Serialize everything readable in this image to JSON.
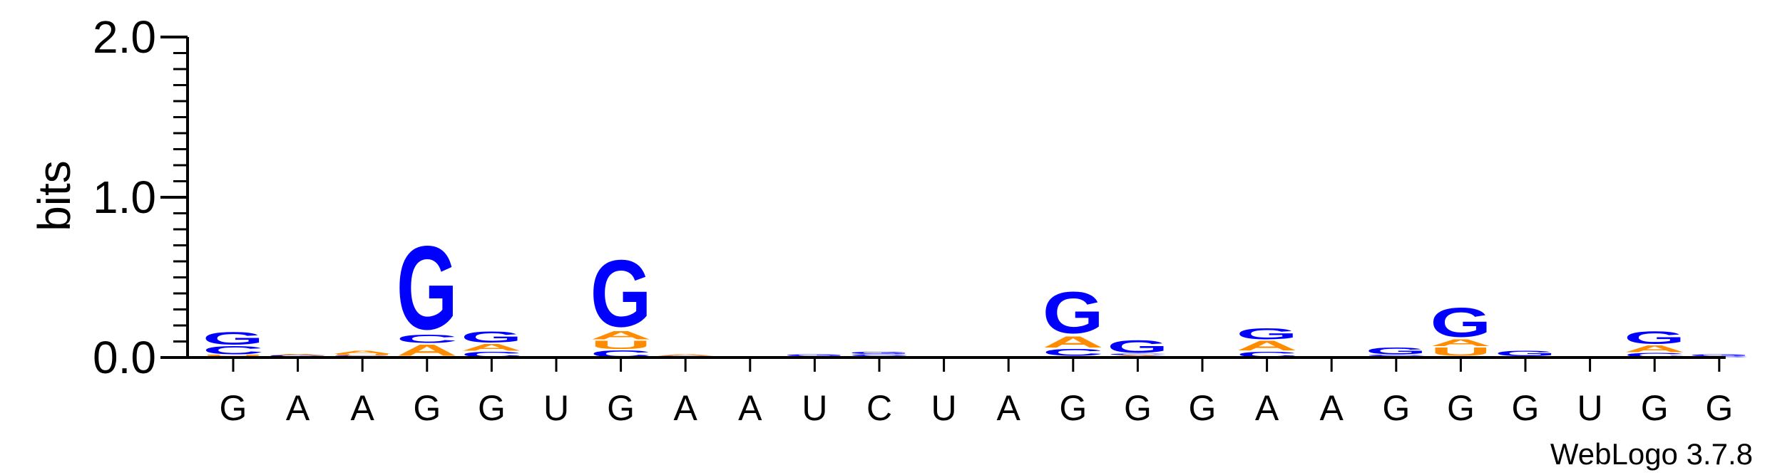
{
  "chart_data": {
    "type": "sequence-logo",
    "ylabel": "bits",
    "ylim": [
      0,
      2.0
    ],
    "yticks": [
      {
        "value": 0,
        "label": "0.0"
      },
      {
        "value": 1,
        "label": "1.0"
      },
      {
        "value": 2,
        "label": "2.0"
      }
    ],
    "y_minor_step": 0.1,
    "colors": {
      "G": "#0000ff",
      "C": "#0000ff",
      "A": "#ff8c00",
      "U": "#ff8c00"
    },
    "positions": [
      {
        "label": "G",
        "stack": [
          [
            "A",
            0.008
          ],
          [
            "U",
            0.008
          ],
          [
            "C",
            0.06
          ],
          [
            "G",
            0.09
          ]
        ]
      },
      {
        "label": "A",
        "stack": [
          [
            "U",
            0.006
          ],
          [
            "G",
            0.008
          ],
          [
            "A",
            0.008
          ]
        ]
      },
      {
        "label": "A",
        "stack": [
          [
            "G",
            0.006
          ],
          [
            "C",
            0.006
          ],
          [
            "U",
            0.008
          ],
          [
            "A",
            0.022
          ]
        ]
      },
      {
        "label": "G",
        "stack": [
          [
            "U",
            0.008
          ],
          [
            "A",
            0.08
          ],
          [
            "C",
            0.06
          ],
          [
            "G",
            0.6
          ]
        ]
      },
      {
        "label": "G",
        "stack": [
          [
            "C",
            0.04
          ],
          [
            "A",
            0.05
          ],
          [
            "G",
            0.08
          ]
        ]
      },
      {
        "label": "U",
        "stack": []
      },
      {
        "label": "G",
        "stack": [
          [
            "C",
            0.05
          ],
          [
            "U",
            0.06
          ],
          [
            "A",
            0.06
          ],
          [
            "G",
            0.48
          ]
        ]
      },
      {
        "label": "A",
        "stack": [
          [
            "U",
            0.005
          ],
          [
            "G",
            0.006
          ],
          [
            "A",
            0.008
          ]
        ]
      },
      {
        "label": "A",
        "stack": []
      },
      {
        "label": "U",
        "stack": [
          [
            "A",
            0.008
          ],
          [
            "G",
            0.014
          ]
        ]
      },
      {
        "label": "C",
        "stack": [
          [
            "A",
            0.008
          ],
          [
            "C",
            0.014
          ],
          [
            "G",
            0.016
          ]
        ]
      },
      {
        "label": "U",
        "stack": []
      },
      {
        "label": "A",
        "stack": []
      },
      {
        "label": "G",
        "stack": [
          [
            "U",
            0.008
          ],
          [
            "C",
            0.05
          ],
          [
            "A",
            0.08
          ],
          [
            "G",
            0.3
          ]
        ]
      },
      {
        "label": "G",
        "stack": [
          [
            "U",
            0.006
          ],
          [
            "A",
            0.008
          ],
          [
            "C",
            0.01
          ],
          [
            "G",
            0.09
          ]
        ]
      },
      {
        "label": "G",
        "stack": [
          [
            "G",
            0.01
          ]
        ]
      },
      {
        "label": "A",
        "stack": [
          [
            "C",
            0.04
          ],
          [
            "A",
            0.07
          ],
          [
            "G",
            0.08
          ]
        ]
      },
      {
        "label": "A",
        "stack": []
      },
      {
        "label": "G",
        "stack": [
          [
            "A",
            0.008
          ],
          [
            "C",
            0.01
          ],
          [
            "G",
            0.05
          ]
        ]
      },
      {
        "label": "G",
        "stack": [
          [
            "C",
            0.008
          ],
          [
            "U",
            0.06
          ],
          [
            "A",
            0.05
          ],
          [
            "G",
            0.21
          ]
        ]
      },
      {
        "label": "G",
        "stack": [
          [
            "C",
            0.006
          ],
          [
            "G",
            0.04
          ]
        ]
      },
      {
        "label": "U",
        "stack": []
      },
      {
        "label": "G",
        "stack": [
          [
            "C",
            0.03
          ],
          [
            "A",
            0.05
          ],
          [
            "G",
            0.09
          ]
        ]
      },
      {
        "label": "G",
        "stack": [
          [
            "C",
            0.008
          ],
          [
            "G",
            0.012
          ]
        ]
      }
    ]
  },
  "credit": "WebLogo 3.7.8"
}
